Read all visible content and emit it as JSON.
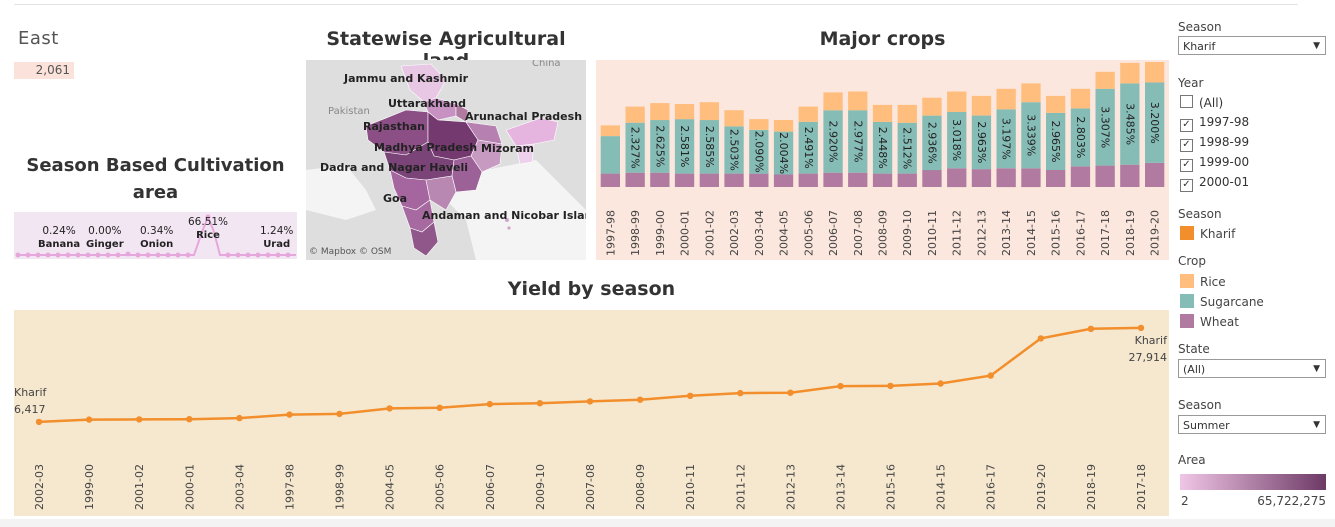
{
  "region": {
    "label": "East",
    "value": "2,061"
  },
  "map": {
    "title": "Statewise Agricultural land",
    "labels": [
      "Jammu and Kashmir",
      "Uttarakhand",
      "Arunachal Pradesh",
      "Rajasthan",
      "Madhya Pradesh",
      "Mizoram",
      "Dadra and Nagar Haveli",
      "Goa",
      "Andaman and Nicobar Islands"
    ],
    "base_labels": [
      "China",
      "Pakistan"
    ],
    "attribution": "© Mapbox  © OSM"
  },
  "season_chart": {
    "title_line1": "Season Based Cultivation",
    "title_line2": "area",
    "items": [
      {
        "pct": "0.24%",
        "name": "Banana"
      },
      {
        "pct": "0.00%",
        "name": "Ginger"
      },
      {
        "pct": "0.34%",
        "name": "Onion"
      },
      {
        "pct": "66.51%",
        "name": "Rice"
      },
      {
        "pct": "1.24%",
        "name": "Urad"
      }
    ]
  },
  "chart_data": [
    {
      "type": "bar",
      "title": "Major crops",
      "stacked": true,
      "categories": [
        "1997-98",
        "1998-99",
        "1999-00",
        "2000-01",
        "2001-02",
        "2002-03",
        "2003-04",
        "2004-05",
        "2005-06",
        "2006-07",
        "2007-08",
        "2008-09",
        "2009-10",
        "2010-11",
        "2011-12",
        "2012-13",
        "2013-14",
        "2014-15",
        "2015-16",
        "2016-17",
        "2017-18",
        "2018-19",
        "2019-20"
      ],
      "series": [
        {
          "name": "Wheat",
          "color": "#b07aa1",
          "values": [
            15,
            16,
            16,
            15,
            15,
            15,
            15,
            14,
            15,
            16,
            16,
            15,
            15,
            19,
            21,
            20,
            21,
            21,
            19,
            23,
            24,
            25,
            27
          ]
        },
        {
          "name": "Sugarcane",
          "color": "#86bcb6",
          "values": [
            42,
            56,
            59,
            61,
            60,
            53,
            49,
            48,
            58,
            70,
            70,
            58,
            57,
            61,
            63,
            60,
            66,
            74,
            64,
            65,
            86,
            91,
            90
          ]
        },
        {
          "name": "Rice",
          "color": "#ffbe7d",
          "values": [
            12,
            18,
            19,
            17,
            20,
            18,
            12,
            13,
            17,
            20,
            21,
            19,
            20,
            20,
            23,
            22,
            23,
            21,
            19,
            22,
            19,
            23,
            23
          ]
        }
      ],
      "data_labels": [
        "",
        "2.327%",
        "2.625%",
        "2.581%",
        "2.585%",
        "2.503%",
        "2.090%",
        "2.004%",
        "2.491%",
        "2.920%",
        "2.977%",
        "2.448%",
        "2.512%",
        "2.936%",
        "3.018%",
        "2.963%",
        "3.197%",
        "3.339%",
        "2.965%",
        "2.803%",
        "3.307%",
        "3.485%",
        "3.200%"
      ],
      "ylim": [
        0,
        140
      ],
      "grid": false
    },
    {
      "type": "line",
      "title": "Yield by season",
      "categories": [
        "2002-03",
        "1999-00",
        "2001-02",
        "2000-01",
        "2003-04",
        "1997-98",
        "1998-99",
        "2004-05",
        "2005-06",
        "2006-07",
        "2009-10",
        "2007-08",
        "2008-09",
        "2010-11",
        "2011-12",
        "2012-13",
        "2013-14",
        "2015-16",
        "2014-15",
        "2016-17",
        "2019-20",
        "2018-19",
        "2017-18"
      ],
      "series": [
        {
          "name": "Kharif",
          "color": "#f28e2b",
          "values": [
            6417,
            6950,
            7000,
            7050,
            7300,
            8100,
            8250,
            9500,
            9650,
            10500,
            10700,
            11100,
            11500,
            12400,
            13000,
            13100,
            14600,
            14650,
            15200,
            17000,
            25500,
            27700,
            27914
          ]
        }
      ],
      "start_label": {
        "series": "Kharif",
        "value": "6,417"
      },
      "end_label": {
        "series": "Kharif",
        "value": "27,914"
      },
      "ylim": [
        0,
        32000
      ],
      "grid": false
    }
  ],
  "sidebar": {
    "season_filter": {
      "label": "Season",
      "selected": "Kharif"
    },
    "year_filter": {
      "label": "Year",
      "options": [
        {
          "label": "(All)",
          "checked": false
        },
        {
          "label": "1997-98",
          "checked": true
        },
        {
          "label": "1998-99",
          "checked": true
        },
        {
          "label": "1999-00",
          "checked": true
        },
        {
          "label": "2000-01",
          "checked": true
        }
      ]
    },
    "season_legend": {
      "label": "Season",
      "items": [
        {
          "name": "Kharif",
          "color": "#f28e2b"
        }
      ]
    },
    "crop_legend": {
      "label": "Crop",
      "items": [
        {
          "name": "Rice",
          "color": "#ffbe7d"
        },
        {
          "name": "Sugarcane",
          "color": "#86bcb6"
        },
        {
          "name": "Wheat",
          "color": "#b07aa1"
        }
      ]
    },
    "state_filter": {
      "label": "State",
      "selected": "(All)"
    },
    "season_filter2": {
      "label": "Season",
      "selected": "Summer"
    },
    "area_legend": {
      "label": "Area",
      "min": "2",
      "max": "65,722,275",
      "color_start": "#f0c6e6",
      "color_end": "#6d3a66"
    }
  }
}
